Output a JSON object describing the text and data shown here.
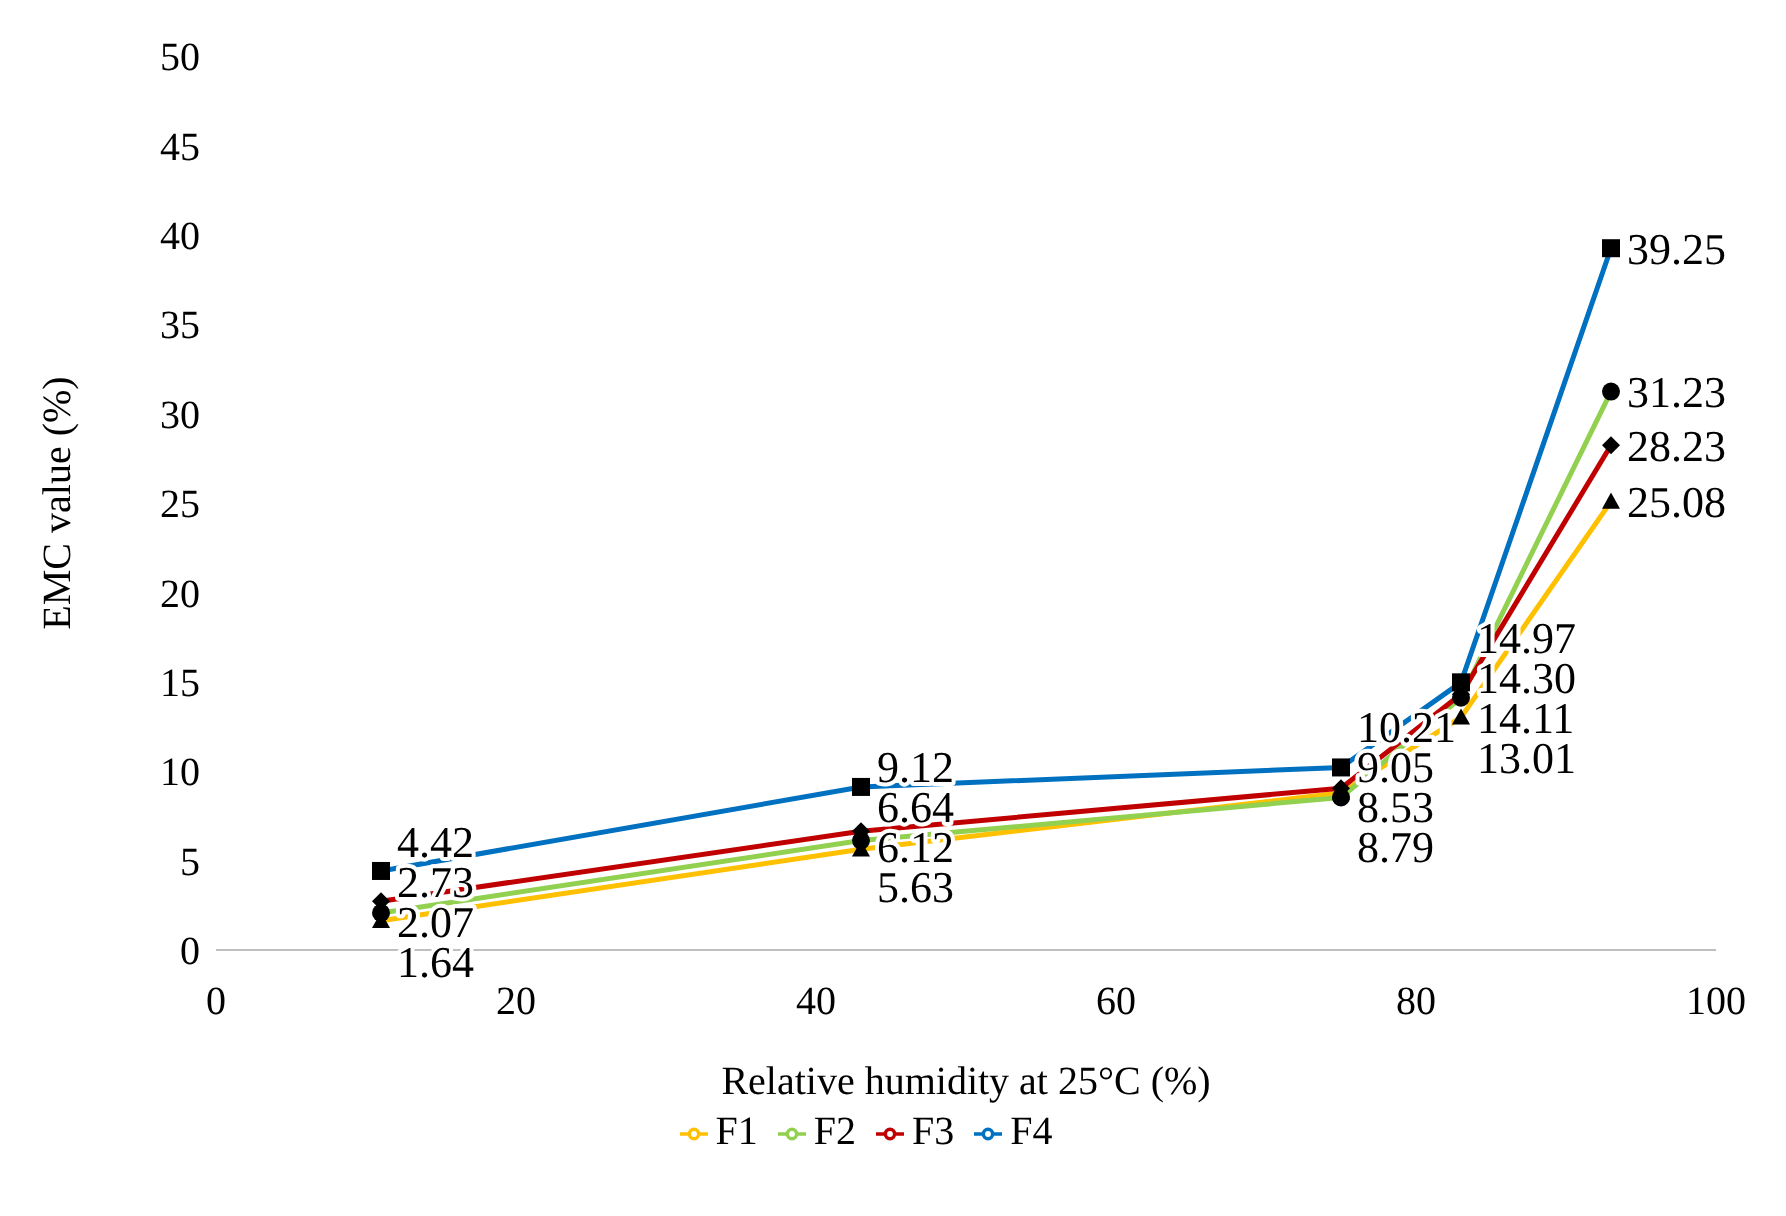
{
  "chart_data": {
    "type": "line",
    "xlabel": "Relative humidity at 25°C (%)",
    "ylabel": "EMC value (%)",
    "x": [
      11,
      43,
      75,
      83,
      93
    ],
    "series": [
      {
        "name": "F1",
        "color": "#ffc000",
        "marker": "triangle",
        "values": [
          1.64,
          5.63,
          8.79,
          13.01,
          25.08
        ],
        "value_labels": [
          "1.64",
          "5.63",
          "8.79",
          "13.01",
          "25.08"
        ]
      },
      {
        "name": "F2",
        "color": "#92d050",
        "marker": "circle",
        "values": [
          2.07,
          6.12,
          8.53,
          14.11,
          31.23
        ],
        "value_labels": [
          "2.07",
          "6.12",
          "8.53",
          "14.11",
          "31.23"
        ]
      },
      {
        "name": "F3",
        "color": "#c00000",
        "marker": "diamond",
        "values": [
          2.73,
          6.64,
          9.05,
          14.3,
          28.23
        ],
        "value_labels": [
          "2.73",
          "6.64",
          "9.05",
          "14.30",
          "28.23"
        ]
      },
      {
        "name": "F4",
        "color": "#0070c0",
        "marker": "square",
        "values": [
          4.42,
          9.12,
          10.21,
          14.97,
          39.25
        ],
        "value_labels": [
          "4.42",
          "9.12",
          "10.21",
          "14.97",
          "39.25"
        ]
      }
    ],
    "xlim": [
      0,
      100
    ],
    "xticks": [
      0,
      20,
      40,
      60,
      80,
      100
    ],
    "ylim": [
      0,
      50
    ],
    "yticks": [
      0,
      5,
      10,
      15,
      20,
      25,
      30,
      35,
      40,
      45,
      50
    ],
    "legend": "bottom",
    "line_style": "solid"
  }
}
